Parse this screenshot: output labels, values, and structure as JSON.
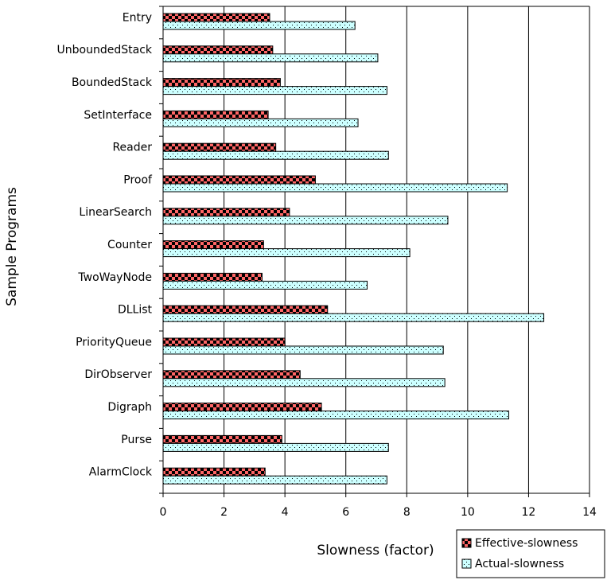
{
  "chart_data": {
    "type": "bar",
    "orientation": "horizontal",
    "categories": [
      "Entry",
      "UnboundedStack",
      "BoundedStack",
      "SetInterface",
      "Reader",
      "Proof",
      "LinearSearch",
      "Counter",
      "TwoWayNode",
      "DLList",
      "PriorityQueue",
      "DirObserver",
      "Digraph",
      "Purse",
      "AlarmClock"
    ],
    "series": [
      {
        "name": "Effective-slowness",
        "color": "#ff6666",
        "values": [
          3.5,
          3.6,
          3.85,
          3.45,
          3.7,
          5.0,
          4.15,
          3.3,
          3.25,
          5.4,
          4.0,
          4.5,
          5.2,
          3.9,
          3.35
        ]
      },
      {
        "name": "Actual-slowness",
        "color": "#ccffff",
        "values": [
          6.3,
          7.05,
          7.35,
          6.4,
          7.4,
          11.3,
          9.35,
          8.1,
          6.7,
          12.5,
          9.2,
          9.25,
          11.35,
          7.4,
          7.35
        ]
      }
    ],
    "xlabel": "Slowness (factor)",
    "ylabel": "Sample Programs",
    "xlim": [
      0,
      14
    ],
    "xticks": [
      0,
      2,
      4,
      6,
      8,
      10,
      12,
      14
    ],
    "grid": "vertical",
    "legend": "bottom-right"
  }
}
